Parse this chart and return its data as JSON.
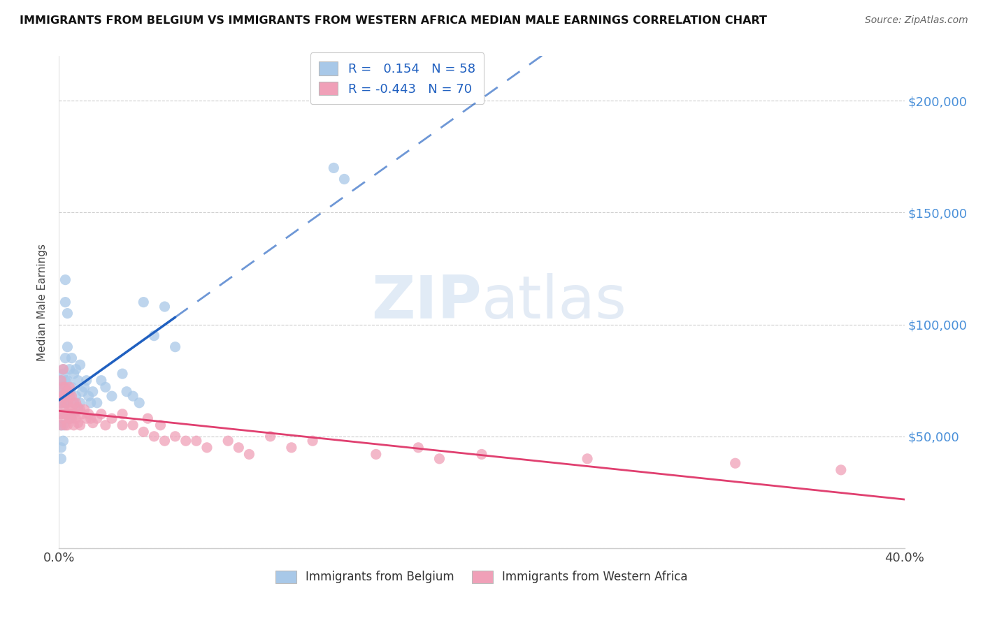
{
  "title": "IMMIGRANTS FROM BELGIUM VS IMMIGRANTS FROM WESTERN AFRICA MEDIAN MALE EARNINGS CORRELATION CHART",
  "source": "Source: ZipAtlas.com",
  "ylabel": "Median Male Earnings",
  "xlim": [
    0.0,
    0.4
  ],
  "ylim": [
    0,
    220000
  ],
  "yticks": [
    0,
    50000,
    100000,
    150000,
    200000
  ],
  "xticks": [
    0.0,
    0.05,
    0.1,
    0.15,
    0.2,
    0.25,
    0.3,
    0.35,
    0.4
  ],
  "belgium_color": "#a8c8e8",
  "western_africa_color": "#f0a0b8",
  "belgium_R": 0.154,
  "belgium_N": 58,
  "western_africa_R": -0.443,
  "western_africa_N": 70,
  "trend_color_blue": "#2060c0",
  "trend_color_pink": "#e04070",
  "ytick_color": "#4a90d9",
  "legend_label_belgium": "Immigrants from Belgium",
  "legend_label_wa": "Immigrants from Western Africa",
  "belgium_x": [
    0.001,
    0.001,
    0.001,
    0.001,
    0.001,
    0.001,
    0.001,
    0.001,
    0.002,
    0.002,
    0.002,
    0.002,
    0.002,
    0.002,
    0.002,
    0.003,
    0.003,
    0.003,
    0.003,
    0.003,
    0.004,
    0.004,
    0.004,
    0.004,
    0.005,
    0.005,
    0.005,
    0.006,
    0.006,
    0.006,
    0.007,
    0.007,
    0.008,
    0.008,
    0.009,
    0.009,
    0.01,
    0.01,
    0.011,
    0.012,
    0.013,
    0.014,
    0.015,
    0.016,
    0.018,
    0.02,
    0.022,
    0.025,
    0.03,
    0.032,
    0.035,
    0.038,
    0.04,
    0.045,
    0.05,
    0.055,
    0.13,
    0.135
  ],
  "belgium_y": [
    65000,
    70000,
    72000,
    75000,
    60000,
    55000,
    45000,
    40000,
    80000,
    78000,
    72000,
    68000,
    65000,
    55000,
    48000,
    120000,
    110000,
    85000,
    75000,
    65000,
    105000,
    90000,
    75000,
    60000,
    80000,
    70000,
    58000,
    85000,
    72000,
    60000,
    78000,
    65000,
    80000,
    68000,
    75000,
    62000,
    82000,
    65000,
    70000,
    72000,
    75000,
    68000,
    65000,
    70000,
    65000,
    75000,
    72000,
    68000,
    78000,
    70000,
    68000,
    65000,
    110000,
    95000,
    108000,
    90000,
    170000,
    165000
  ],
  "wa_x": [
    0.001,
    0.001,
    0.001,
    0.001,
    0.001,
    0.002,
    0.002,
    0.002,
    0.002,
    0.002,
    0.003,
    0.003,
    0.003,
    0.003,
    0.003,
    0.004,
    0.004,
    0.004,
    0.004,
    0.005,
    0.005,
    0.005,
    0.005,
    0.006,
    0.006,
    0.006,
    0.007,
    0.007,
    0.007,
    0.008,
    0.008,
    0.009,
    0.009,
    0.01,
    0.01,
    0.011,
    0.012,
    0.013,
    0.014,
    0.015,
    0.016,
    0.018,
    0.02,
    0.022,
    0.025,
    0.03,
    0.03,
    0.035,
    0.04,
    0.042,
    0.045,
    0.048,
    0.05,
    0.055,
    0.06,
    0.065,
    0.07,
    0.08,
    0.085,
    0.09,
    0.1,
    0.11,
    0.12,
    0.15,
    0.17,
    0.18,
    0.2,
    0.25,
    0.32,
    0.37
  ],
  "wa_y": [
    75000,
    68000,
    65000,
    60000,
    55000,
    80000,
    72000,
    68000,
    62000,
    58000,
    72000,
    68000,
    65000,
    60000,
    55000,
    70000,
    65000,
    60000,
    55000,
    72000,
    68000,
    62000,
    58000,
    68000,
    62000,
    58000,
    65000,
    60000,
    55000,
    65000,
    58000,
    63000,
    56000,
    62000,
    55000,
    60000,
    62000,
    58000,
    60000,
    58000,
    56000,
    58000,
    60000,
    55000,
    58000,
    60000,
    55000,
    55000,
    52000,
    58000,
    50000,
    55000,
    48000,
    50000,
    48000,
    48000,
    45000,
    48000,
    45000,
    42000,
    50000,
    45000,
    48000,
    42000,
    45000,
    40000,
    42000,
    40000,
    38000,
    35000
  ]
}
